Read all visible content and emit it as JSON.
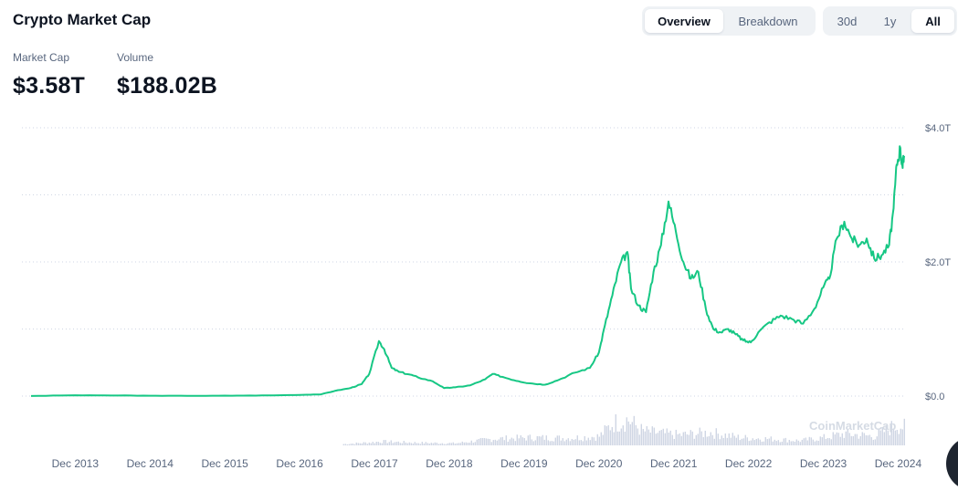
{
  "header": {
    "title": "Crypto Market Cap"
  },
  "view_tabs": [
    {
      "label": "Overview",
      "active": true
    },
    {
      "label": "Breakdown",
      "active": false
    }
  ],
  "range_tabs": [
    {
      "label": "30d",
      "active": false
    },
    {
      "label": "1y",
      "active": false
    },
    {
      "label": "All",
      "active": true
    }
  ],
  "stats": {
    "market_cap": {
      "label": "Market Cap",
      "value": "$3.58T"
    },
    "volume": {
      "label": "Volume",
      "value": "$188.02B"
    }
  },
  "watermark": "CoinMarketCap",
  "colors": {
    "line": "#16c784",
    "volume": "#cfd6e4",
    "grid": "#cfd6e4",
    "text": "#58667e"
  },
  "chart_data": {
    "type": "line",
    "title": "",
    "xlabel": "",
    "ylabel": "",
    "y_unit": "trillion USD",
    "ylim": [
      0,
      4
    ],
    "y_ticks": [
      {
        "value": 0,
        "label": "$0.0"
      },
      {
        "value": 2,
        "label": "$2.0T"
      },
      {
        "value": 4,
        "label": "$4.0T"
      }
    ],
    "xlim": [
      2013.33,
      2025.0
    ],
    "x_ticks": [
      {
        "value": 2013.92,
        "label": "Dec 2013"
      },
      {
        "value": 2014.92,
        "label": "Dec 2014"
      },
      {
        "value": 2015.92,
        "label": "Dec 2015"
      },
      {
        "value": 2016.92,
        "label": "Dec 2016"
      },
      {
        "value": 2017.92,
        "label": "Dec 2017"
      },
      {
        "value": 2018.92,
        "label": "Dec 2018"
      },
      {
        "value": 2019.92,
        "label": "Dec 2019"
      },
      {
        "value": 2020.92,
        "label": "Dec 2020"
      },
      {
        "value": 2021.92,
        "label": "Dec 2021"
      },
      {
        "value": 2022.92,
        "label": "Dec 2022"
      },
      {
        "value": 2023.92,
        "label": "Dec 2023"
      },
      {
        "value": 2024.92,
        "label": "Dec 2024"
      }
    ],
    "grid": true,
    "series": [
      {
        "values": [
          [
            2013.33,
            0.002
          ],
          [
            2013.92,
            0.012
          ],
          [
            2014.5,
            0.008
          ],
          [
            2015.0,
            0.005
          ],
          [
            2015.5,
            0.004
          ],
          [
            2016.0,
            0.006
          ],
          [
            2016.5,
            0.01
          ],
          [
            2016.92,
            0.018
          ],
          [
            2017.2,
            0.025
          ],
          [
            2017.4,
            0.08
          ],
          [
            2017.6,
            0.12
          ],
          [
            2017.75,
            0.18
          ],
          [
            2017.85,
            0.33
          ],
          [
            2017.98,
            0.82
          ],
          [
            2018.05,
            0.7
          ],
          [
            2018.15,
            0.42
          ],
          [
            2018.25,
            0.36
          ],
          [
            2018.4,
            0.32
          ],
          [
            2018.5,
            0.28
          ],
          [
            2018.7,
            0.22
          ],
          [
            2018.85,
            0.12
          ],
          [
            2019.0,
            0.13
          ],
          [
            2019.2,
            0.16
          ],
          [
            2019.4,
            0.25
          ],
          [
            2019.5,
            0.33
          ],
          [
            2019.65,
            0.28
          ],
          [
            2019.85,
            0.22
          ],
          [
            2020.0,
            0.19
          ],
          [
            2020.2,
            0.17
          ],
          [
            2020.4,
            0.25
          ],
          [
            2020.6,
            0.35
          ],
          [
            2020.8,
            0.42
          ],
          [
            2020.92,
            0.65
          ],
          [
            2021.0,
            1.05
          ],
          [
            2021.1,
            1.5
          ],
          [
            2021.2,
            1.95
          ],
          [
            2021.3,
            2.15
          ],
          [
            2021.35,
            1.6
          ],
          [
            2021.45,
            1.35
          ],
          [
            2021.55,
            1.25
          ],
          [
            2021.65,
            1.85
          ],
          [
            2021.75,
            2.25
          ],
          [
            2021.85,
            2.9
          ],
          [
            2021.95,
            2.45
          ],
          [
            2022.05,
            2.0
          ],
          [
            2022.15,
            1.75
          ],
          [
            2022.25,
            1.85
          ],
          [
            2022.35,
            1.3
          ],
          [
            2022.45,
            1.0
          ],
          [
            2022.55,
            0.95
          ],
          [
            2022.65,
            1.0
          ],
          [
            2022.75,
            0.92
          ],
          [
            2022.85,
            0.83
          ],
          [
            2022.95,
            0.8
          ],
          [
            2023.05,
            0.95
          ],
          [
            2023.2,
            1.1
          ],
          [
            2023.35,
            1.2
          ],
          [
            2023.5,
            1.15
          ],
          [
            2023.65,
            1.08
          ],
          [
            2023.8,
            1.3
          ],
          [
            2023.92,
            1.62
          ],
          [
            2024.0,
            1.75
          ],
          [
            2024.1,
            2.35
          ],
          [
            2024.2,
            2.6
          ],
          [
            2024.3,
            2.35
          ],
          [
            2024.4,
            2.25
          ],
          [
            2024.5,
            2.35
          ],
          [
            2024.6,
            2.05
          ],
          [
            2024.7,
            2.1
          ],
          [
            2024.8,
            2.25
          ],
          [
            2024.86,
            2.8
          ],
          [
            2024.9,
            3.45
          ],
          [
            2024.95,
            3.7
          ],
          [
            2024.98,
            3.4
          ],
          [
            2025.0,
            3.58
          ]
        ]
      }
    ],
    "volume_series": {
      "name": "Volume",
      "description_axis": "relative",
      "values": [
        [
          2017.5,
          0.05
        ],
        [
          2017.9,
          0.12
        ],
        [
          2018.0,
          0.15
        ],
        [
          2018.5,
          0.1
        ],
        [
          2019.0,
          0.08
        ],
        [
          2019.5,
          0.25
        ],
        [
          2020.0,
          0.3
        ],
        [
          2020.5,
          0.28
        ],
        [
          2020.92,
          0.35
        ],
        [
          2021.1,
          0.85
        ],
        [
          2021.3,
          1.0
        ],
        [
          2021.5,
          0.55
        ],
        [
          2021.8,
          0.45
        ],
        [
          2022.0,
          0.4
        ],
        [
          2022.4,
          0.5
        ],
        [
          2022.8,
          0.3
        ],
        [
          2023.2,
          0.25
        ],
        [
          2023.6,
          0.18
        ],
        [
          2023.92,
          0.3
        ],
        [
          2024.2,
          0.45
        ],
        [
          2024.6,
          0.35
        ],
        [
          2024.9,
          0.8
        ],
        [
          2025.0,
          0.7
        ]
      ]
    }
  }
}
